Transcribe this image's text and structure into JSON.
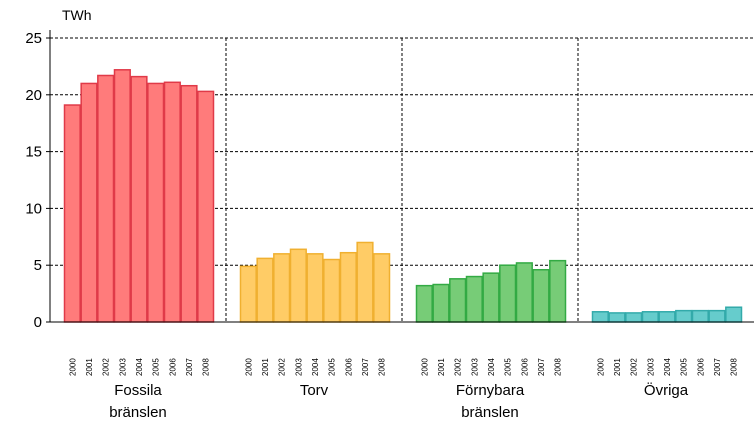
{
  "chart_data": {
    "type": "grouped-bar",
    "unit_label": "TWh",
    "categories": [
      "2000",
      "2001",
      "2002",
      "2003",
      "2004",
      "2005",
      "2006",
      "2007",
      "2008"
    ],
    "series": [
      {
        "name": "Fossila bränslen",
        "color": "#ff7b7b",
        "edgecolor": "#e03a48",
        "values": [
          19.1,
          21.0,
          21.7,
          22.2,
          21.6,
          21.0,
          21.1,
          20.8,
          20.3
        ]
      },
      {
        "name": "Torv",
        "color": "#ffcc66",
        "edgecolor": "#f0b030",
        "values": [
          4.9,
          5.6,
          6.0,
          6.4,
          6.0,
          5.5,
          6.1,
          7.0,
          6.0
        ]
      },
      {
        "name": "Förnybara bränslen",
        "color": "#77cc77",
        "edgecolor": "#33aa44",
        "values": [
          3.2,
          3.3,
          3.8,
          4.0,
          4.3,
          5.0,
          5.2,
          4.6,
          5.4
        ]
      },
      {
        "name": "Övriga",
        "color": "#66cccc",
        "edgecolor": "#33aaaa",
        "values": [
          0.9,
          0.8,
          0.8,
          0.9,
          0.9,
          1.0,
          1.0,
          1.0,
          1.3
        ]
      }
    ],
    "ylim": [
      0,
      25
    ],
    "yticks": [
      0,
      5,
      10,
      15,
      20,
      25
    ],
    "grid": true
  }
}
